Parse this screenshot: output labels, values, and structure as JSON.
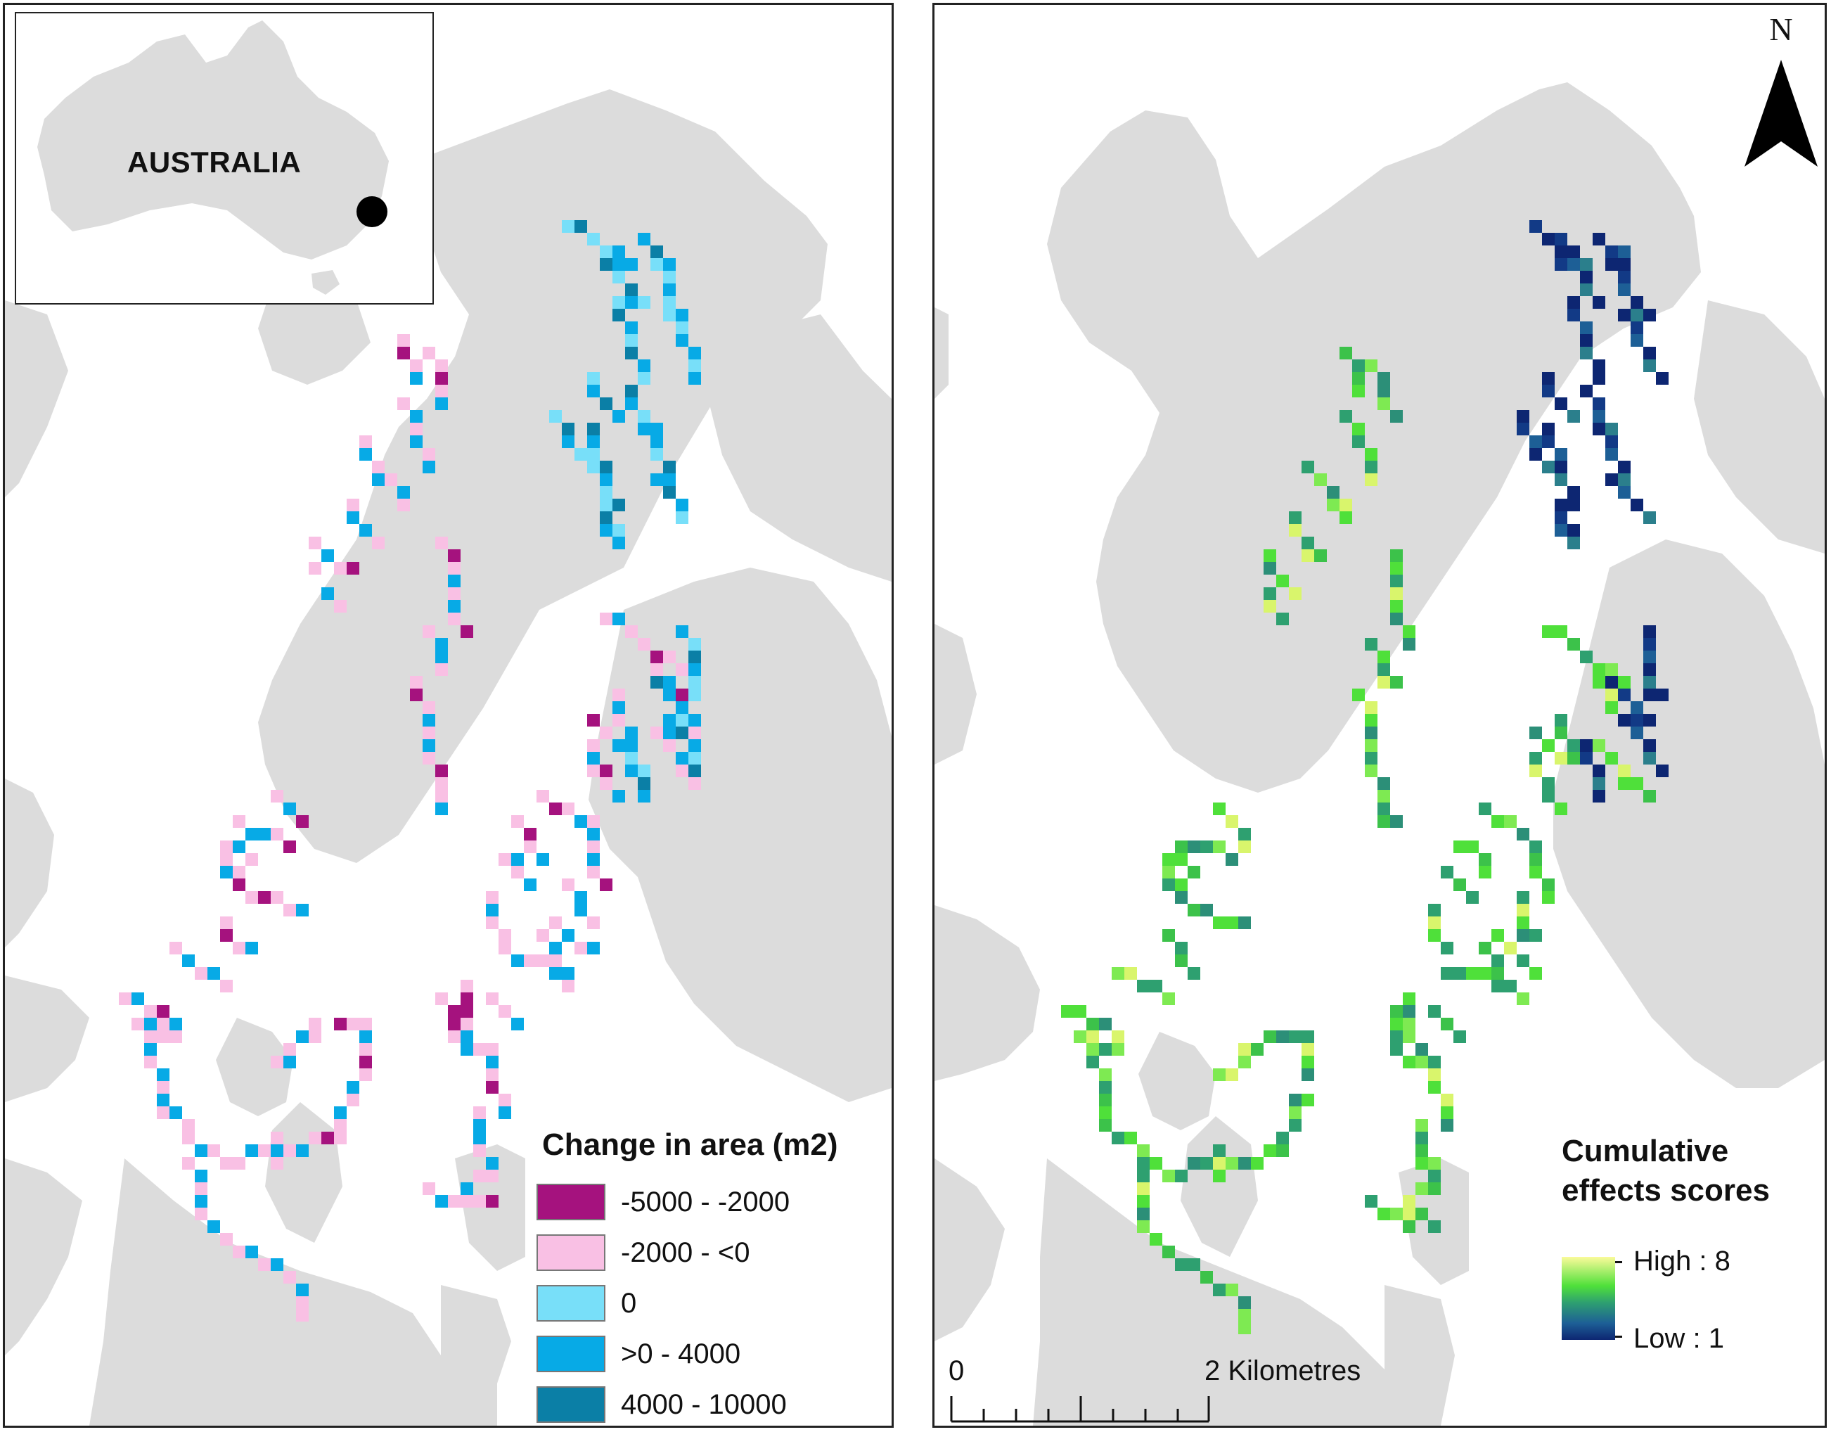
{
  "left_map": {
    "inset_label": "AUSTRALIA",
    "legend": {
      "title": "Change in area (m2)",
      "classes": [
        {
          "label": "-5000 - -2000",
          "color": "#a5127e"
        },
        {
          "label": "-2000 - <0",
          "color": "#f9c0e4"
        },
        {
          "label": "0",
          "color": "#78dff9"
        },
        {
          "label": ">0 - 4000",
          "color": "#07aae6"
        },
        {
          "label": "4000 - 10000",
          "color": "#0b7fa6"
        }
      ]
    },
    "colors": {
      "land": "#dcdcdc",
      "water": "#ffffff",
      "locator_dot": "#000000"
    }
  },
  "right_map": {
    "legend": {
      "title": "Cumulative effects scores",
      "high_label": "High : 8",
      "low_label": "Low : 1",
      "ramp_colors": [
        "#fbfb9a",
        "#4fe03a",
        "#2ea070",
        "#1d5f96",
        "#0d2672"
      ]
    },
    "north_arrow": {
      "label": "N"
    },
    "scale_bar": {
      "start_label": "0",
      "end_label": "2 Kilometres"
    },
    "colors": {
      "land": "#dcdcdc",
      "water": "#ffffff"
    }
  }
}
